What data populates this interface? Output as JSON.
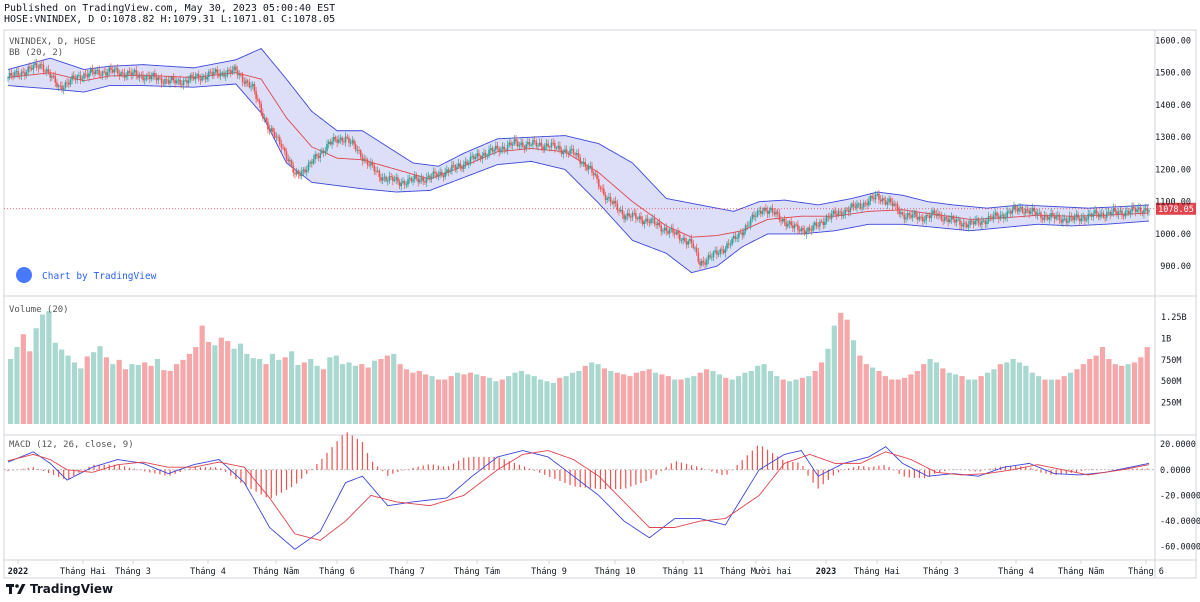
{
  "header": {
    "published": "Published on TradingView.com, May 30, 2023 05:00:40 EST",
    "symbol_line": "HOSE:VNINDEX, D O:1078.82 H:1079.31 L:1071.01 C:1078.05"
  },
  "footer": {
    "brand": "TradingView"
  },
  "colors": {
    "up": "#26a69a",
    "down": "#ef5350",
    "up_fill": "#a8d8cf",
    "down_fill": "#f5a7a9",
    "band": "#3d47d9",
    "band_fill": "#d1d4f5",
    "basis": "#e0444d",
    "macd": "#3d47d9",
    "signal": "#e0444d",
    "last_price": "#e0444d",
    "grid": "#d1d4dc"
  },
  "chart_data": [
    {
      "type": "candlestick",
      "title": "VNINDEX, D, HOSE",
      "indicator_label": "BB (20, 2)",
      "watermark": "Chart by TradingView",
      "y_ticks": [
        "1600.00",
        "1500.00",
        "1400.00",
        "1300.00",
        "1200.00",
        "1100.00",
        "1000.00",
        "900.00"
      ],
      "ylim": [
        820,
        1620
      ],
      "last_price_label": "1078.05",
      "last": 1078.05,
      "anchors": [
        [
          0,
          1485
        ],
        [
          20,
          1525
        ],
        [
          30,
          1455
        ],
        [
          45,
          1495
        ],
        [
          60,
          1505
        ],
        [
          80,
          1490
        ],
        [
          100,
          1470
        ],
        [
          120,
          1495
        ],
        [
          135,
          1505
        ],
        [
          145,
          1450
        ],
        [
          155,
          1320
        ],
        [
          162,
          1280
        ],
        [
          170,
          1180
        ],
        [
          178,
          1210
        ],
        [
          190,
          1280
        ],
        [
          200,
          1300
        ],
        [
          210,
          1240
        ],
        [
          220,
          1180
        ],
        [
          232,
          1160
        ],
        [
          250,
          1175
        ],
        [
          265,
          1205
        ],
        [
          280,
          1245
        ],
        [
          300,
          1280
        ],
        [
          320,
          1275
        ],
        [
          335,
          1250
        ],
        [
          345,
          1200
        ],
        [
          355,
          1110
        ],
        [
          365,
          1060
        ],
        [
          380,
          1040
        ],
        [
          395,
          1000
        ],
        [
          405,
          970
        ],
        [
          410,
          910
        ],
        [
          420,
          940
        ],
        [
          430,
          980
        ],
        [
          440,
          1040
        ],
        [
          447,
          1080
        ],
        [
          455,
          1060
        ],
        [
          465,
          1020
        ],
        [
          475,
          1010
        ],
        [
          485,
          1050
        ],
        [
          495,
          1070
        ],
        [
          505,
          1090
        ],
        [
          515,
          1115
        ],
        [
          522,
          1100
        ],
        [
          530,
          1060
        ],
        [
          540,
          1050
        ],
        [
          550,
          1060
        ],
        [
          560,
          1040
        ],
        [
          570,
          1030
        ],
        [
          580,
          1045
        ],
        [
          590,
          1060
        ],
        [
          600,
          1080
        ],
        [
          610,
          1060
        ],
        [
          620,
          1050
        ],
        [
          630,
          1045
        ],
        [
          645,
          1060
        ],
        [
          655,
          1065
        ],
        [
          665,
          1070
        ],
        [
          675,
          1078
        ]
      ],
      "bb_upper_anchors": [
        [
          0,
          1510
        ],
        [
          25,
          1545
        ],
        [
          45,
          1510
        ],
        [
          60,
          1520
        ],
        [
          80,
          1525
        ],
        [
          110,
          1515
        ],
        [
          135,
          1540
        ],
        [
          150,
          1575
        ],
        [
          165,
          1480
        ],
        [
          180,
          1380
        ],
        [
          195,
          1320
        ],
        [
          210,
          1320
        ],
        [
          225,
          1270
        ],
        [
          240,
          1220
        ],
        [
          255,
          1210
        ],
        [
          270,
          1250
        ],
        [
          290,
          1295
        ],
        [
          310,
          1300
        ],
        [
          330,
          1305
        ],
        [
          350,
          1280
        ],
        [
          370,
          1220
        ],
        [
          390,
          1110
        ],
        [
          410,
          1090
        ],
        [
          430,
          1070
        ],
        [
          445,
          1100
        ],
        [
          460,
          1105
        ],
        [
          480,
          1090
        ],
        [
          500,
          1110
        ],
        [
          515,
          1130
        ],
        [
          530,
          1120
        ],
        [
          545,
          1100
        ],
        [
          560,
          1090
        ],
        [
          580,
          1080
        ],
        [
          600,
          1090
        ],
        [
          620,
          1085
        ],
        [
          640,
          1080
        ],
        [
          660,
          1085
        ],
        [
          676,
          1090
        ]
      ],
      "bb_lower_anchors": [
        [
          0,
          1460
        ],
        [
          25,
          1450
        ],
        [
          45,
          1440
        ],
        [
          60,
          1460
        ],
        [
          80,
          1460
        ],
        [
          110,
          1455
        ],
        [
          135,
          1465
        ],
        [
          150,
          1375
        ],
        [
          165,
          1220
        ],
        [
          180,
          1160
        ],
        [
          195,
          1150
        ],
        [
          210,
          1140
        ],
        [
          230,
          1130
        ],
        [
          250,
          1135
        ],
        [
          270,
          1175
        ],
        [
          290,
          1215
        ],
        [
          310,
          1225
        ],
        [
          330,
          1200
        ],
        [
          350,
          1095
        ],
        [
          370,
          980
        ],
        [
          390,
          940
        ],
        [
          405,
          880
        ],
        [
          420,
          900
        ],
        [
          435,
          960
        ],
        [
          450,
          1000
        ],
        [
          470,
          1000
        ],
        [
          490,
          1010
        ],
        [
          510,
          1030
        ],
        [
          530,
          1030
        ],
        [
          550,
          1020
        ],
        [
          570,
          1010
        ],
        [
          590,
          1020
        ],
        [
          610,
          1030
        ],
        [
          630,
          1025
        ],
        [
          650,
          1030
        ],
        [
          676,
          1040
        ]
      ],
      "bb_basis_anchors": [
        [
          0,
          1485
        ],
        [
          25,
          1500
        ],
        [
          45,
          1475
        ],
        [
          60,
          1490
        ],
        [
          80,
          1492
        ],
        [
          110,
          1485
        ],
        [
          135,
          1500
        ],
        [
          150,
          1480
        ],
        [
          165,
          1360
        ],
        [
          180,
          1270
        ],
        [
          195,
          1235
        ],
        [
          210,
          1230
        ],
        [
          230,
          1200
        ],
        [
          250,
          1170
        ],
        [
          270,
          1210
        ],
        [
          290,
          1255
        ],
        [
          310,
          1265
        ],
        [
          330,
          1255
        ],
        [
          350,
          1190
        ],
        [
          370,
          1100
        ],
        [
          390,
          1025
        ],
        [
          405,
          990
        ],
        [
          420,
          995
        ],
        [
          435,
          1010
        ],
        [
          450,
          1045
        ],
        [
          470,
          1055
        ],
        [
          490,
          1055
        ],
        [
          510,
          1070
        ],
        [
          530,
          1075
        ],
        [
          550,
          1060
        ],
        [
          570,
          1045
        ],
        [
          590,
          1050
        ],
        [
          610,
          1058
        ],
        [
          630,
          1055
        ],
        [
          650,
          1058
        ],
        [
          676,
          1065
        ]
      ]
    },
    {
      "type": "bar",
      "title": "Volume (20)",
      "y_ticks": [
        "1.25B",
        "1B",
        "750M",
        "500M",
        "250M"
      ],
      "ylim": [
        0,
        1450
      ],
      "values": [
        760,
        900,
        1050,
        850,
        1120,
        1280,
        1320,
        950,
        870,
        800,
        720,
        650,
        790,
        840,
        910,
        780,
        700,
        750,
        640,
        700,
        690,
        720,
        680,
        760,
        630,
        620,
        700,
        750,
        820,
        900,
        1150,
        960,
        920,
        1010,
        970,
        880,
        940,
        820,
        770,
        760,
        700,
        820,
        750,
        780,
        850,
        690,
        720,
        760,
        680,
        640,
        780,
        800,
        700,
        720,
        680,
        700,
        660,
        740,
        760,
        800,
        820,
        700,
        640,
        600,
        620,
        580,
        560,
        520,
        520,
        560,
        600,
        580,
        600,
        580,
        560,
        540,
        500,
        520,
        560,
        600,
        620,
        580,
        560,
        520,
        500,
        480,
        540,
        560,
        600,
        620,
        680,
        720,
        700,
        650,
        620,
        600,
        580,
        560,
        600,
        620,
        640,
        600,
        580,
        560,
        520,
        520,
        540,
        560,
        600,
        640,
        620,
        580,
        540,
        520,
        560,
        600,
        620,
        680,
        700,
        620,
        560,
        520,
        500,
        520,
        540,
        560,
        620,
        720,
        880,
        1150,
        1300,
        1220,
        980,
        800,
        700,
        660,
        620,
        560,
        520,
        520,
        540,
        580,
        620,
        700,
        760,
        720,
        650,
        600,
        580,
        560,
        520,
        520,
        560,
        600,
        640,
        700,
        720,
        760,
        720,
        680,
        600,
        560,
        520,
        520,
        520,
        560,
        600,
        640,
        700,
        760,
        800,
        900,
        760,
        700,
        680,
        700,
        720,
        780,
        900
      ],
      "up_pattern": "mixed"
    },
    {
      "type": "line",
      "title": "MACD (12, 26, close, 9)",
      "y_ticks": [
        "20.0000",
        "0.0000",
        "-20.0000",
        "-40.0000",
        "-60.0000"
      ],
      "ylim": [
        -68,
        24
      ],
      "macd_anchors": [
        [
          0,
          6
        ],
        [
          15,
          14
        ],
        [
          25,
          5
        ],
        [
          35,
          -8
        ],
        [
          50,
          2
        ],
        [
          65,
          8
        ],
        [
          80,
          5
        ],
        [
          95,
          -3
        ],
        [
          110,
          4
        ],
        [
          125,
          8
        ],
        [
          140,
          -10
        ],
        [
          155,
          -45
        ],
        [
          170,
          -62
        ],
        [
          185,
          -48
        ],
        [
          200,
          -10
        ],
        [
          210,
          -5
        ],
        [
          225,
          -28
        ],
        [
          240,
          -25
        ],
        [
          260,
          -22
        ],
        [
          275,
          -5
        ],
        [
          290,
          10
        ],
        [
          305,
          15
        ],
        [
          320,
          10
        ],
        [
          335,
          -5
        ],
        [
          350,
          -20
        ],
        [
          365,
          -40
        ],
        [
          380,
          -53
        ],
        [
          395,
          -38
        ],
        [
          410,
          -38
        ],
        [
          425,
          -43
        ],
        [
          445,
          0
        ],
        [
          460,
          12
        ],
        [
          470,
          15
        ],
        [
          480,
          -5
        ],
        [
          495,
          5
        ],
        [
          510,
          10
        ],
        [
          520,
          18
        ],
        [
          530,
          5
        ],
        [
          545,
          -5
        ],
        [
          560,
          -3
        ],
        [
          575,
          -5
        ],
        [
          590,
          2
        ],
        [
          605,
          5
        ],
        [
          620,
          -3
        ],
        [
          635,
          -4
        ],
        [
          650,
          -2
        ],
        [
          676,
          5
        ]
      ],
      "signal_anchors": [
        [
          0,
          7
        ],
        [
          15,
          12
        ],
        [
          25,
          8
        ],
        [
          35,
          0
        ],
        [
          50,
          -2
        ],
        [
          65,
          4
        ],
        [
          80,
          6
        ],
        [
          95,
          2
        ],
        [
          110,
          2
        ],
        [
          125,
          6
        ],
        [
          140,
          2
        ],
        [
          155,
          -22
        ],
        [
          170,
          -50
        ],
        [
          185,
          -55
        ],
        [
          200,
          -40
        ],
        [
          215,
          -20
        ],
        [
          230,
          -25
        ],
        [
          250,
          -28
        ],
        [
          270,
          -20
        ],
        [
          290,
          0
        ],
        [
          305,
          12
        ],
        [
          320,
          15
        ],
        [
          335,
          8
        ],
        [
          350,
          -5
        ],
        [
          365,
          -25
        ],
        [
          380,
          -45
        ],
        [
          395,
          -45
        ],
        [
          410,
          -40
        ],
        [
          425,
          -38
        ],
        [
          445,
          -20
        ],
        [
          460,
          5
        ],
        [
          475,
          12
        ],
        [
          490,
          5
        ],
        [
          505,
          5
        ],
        [
          520,
          14
        ],
        [
          535,
          8
        ],
        [
          550,
          -2
        ],
        [
          565,
          -4
        ],
        [
          580,
          -3
        ],
        [
          595,
          0
        ],
        [
          610,
          4
        ],
        [
          625,
          0
        ],
        [
          640,
          -4
        ],
        [
          660,
          0
        ],
        [
          676,
          4
        ]
      ],
      "zero_line": true
    }
  ],
  "x_axis": {
    "labels": [
      "2022",
      "Tháng Hai",
      "Tháng 3",
      "Tháng 4",
      "Tháng Năm",
      "Tháng 6",
      "Tháng 7",
      "Tháng Tám",
      "Tháng 9",
      "Tháng 10",
      "Tháng 11",
      "Tháng Mười hai",
      "2023",
      "Tháng Hai",
      "Tháng 3",
      "Tháng 4",
      "Tháng Năm",
      "Tháng 6"
    ],
    "bold": [
      true,
      false,
      false,
      false,
      false,
      false,
      false,
      false,
      false,
      false,
      false,
      false,
      true,
      false,
      false,
      false,
      false,
      false
    ]
  }
}
